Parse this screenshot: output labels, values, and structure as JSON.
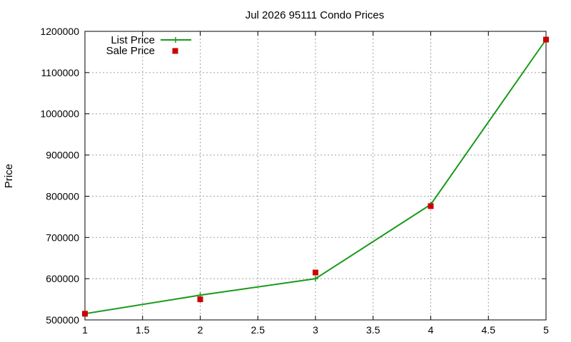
{
  "chart_data": {
    "type": "line",
    "title": "Jul 2026 95111 Condo Prices",
    "xlabel": "",
    "ylabel": "Price",
    "xlim": [
      1,
      5
    ],
    "ylim": [
      500000,
      1200000
    ],
    "x_ticks": [
      "1",
      "1.5",
      "2",
      "2.5",
      "3",
      "3.5",
      "4",
      "4.5",
      "5"
    ],
    "y_ticks": [
      "500000",
      "600000",
      "700000",
      "800000",
      "900000",
      "1000000",
      "1100000",
      "1200000"
    ],
    "grid": true,
    "legend_position": "top-left",
    "series": [
      {
        "name": "List Price",
        "style": "line+cross",
        "color": "#1a9a1a",
        "x": [
          1,
          2,
          3,
          4,
          5
        ],
        "y": [
          515000,
          560000,
          600000,
          780000,
          1180000
        ]
      },
      {
        "name": "Sale Price",
        "style": "square-points",
        "color": "#cc0000",
        "x": [
          1,
          2,
          3,
          4,
          5
        ],
        "y": [
          515000,
          550000,
          615000,
          776000,
          1180000
        ]
      }
    ]
  }
}
